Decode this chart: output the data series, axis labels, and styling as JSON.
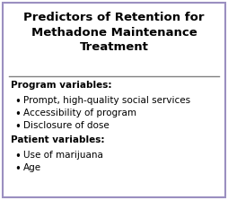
{
  "title": "Predictors of Retention for\nMethadone Maintenance\nTreatment",
  "title_fontsize": 9.5,
  "title_fontweight": "bold",
  "section1_header": "Program variables:",
  "section1_items": [
    "Prompt, high-quality social services",
    "Accessibility of program",
    "Disclosure of dose"
  ],
  "section2_header": "Patient variables:",
  "section2_items": [
    "Use of marijuana",
    "Age"
  ],
  "bg_color": "#ffffff",
  "border_color": "#9b8fc0",
  "text_color": "#000000",
  "header_fontsize": 7.5,
  "item_fontsize": 7.5,
  "separator_color": "#808080",
  "bullet": "•"
}
